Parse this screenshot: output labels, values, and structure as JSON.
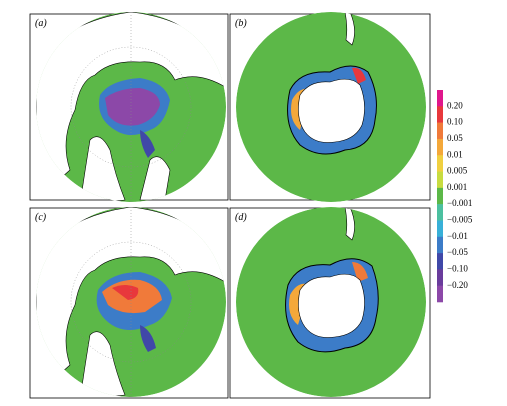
{
  "panels": [
    {
      "label": "(a)"
    },
    {
      "label": "(b)"
    },
    {
      "label": "(c)"
    },
    {
      "label": "(d)"
    }
  ],
  "colorbar": {
    "labels": [
      "0.20",
      "0.10",
      "0.05",
      "0.01",
      "0.005",
      "0.001",
      "−0.001",
      "−0.005",
      "−0.01",
      "−0.05",
      "−0.10",
      "−0.20"
    ],
    "colors": [
      "#e0178c",
      "#e8383c",
      "#f07a3a",
      "#f4a83a",
      "#f0d040",
      "#c8dc40",
      "#5cb848",
      "#4cc0a0",
      "#38b0d8",
      "#3c7cc8",
      "#4048a8",
      "#6a3c9c",
      "#8c48a8"
    ]
  }
}
